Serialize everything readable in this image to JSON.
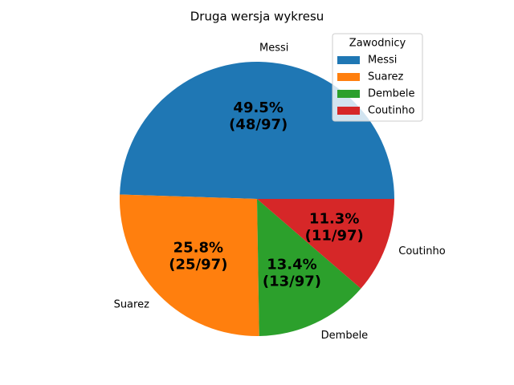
{
  "chart_data": {
    "type": "pie",
    "title": "Druga wersja wykresu",
    "categories": [
      "Messi",
      "Suarez",
      "Dembele",
      "Coutinho"
    ],
    "values": [
      48,
      25,
      13,
      11
    ],
    "value_labels": [
      [
        "49.5%",
        "(48/97)"
      ],
      [
        "25.8%",
        "(25/97)"
      ],
      [
        "13.4%",
        "(13/97)"
      ],
      [
        "11.3%",
        "(11/97)"
      ]
    ],
    "colors": [
      "#1f77b4",
      "#ff7f0e",
      "#2ca02c",
      "#d62728"
    ],
    "legend_title": "Zawodnicy",
    "legend": "upper right"
  }
}
